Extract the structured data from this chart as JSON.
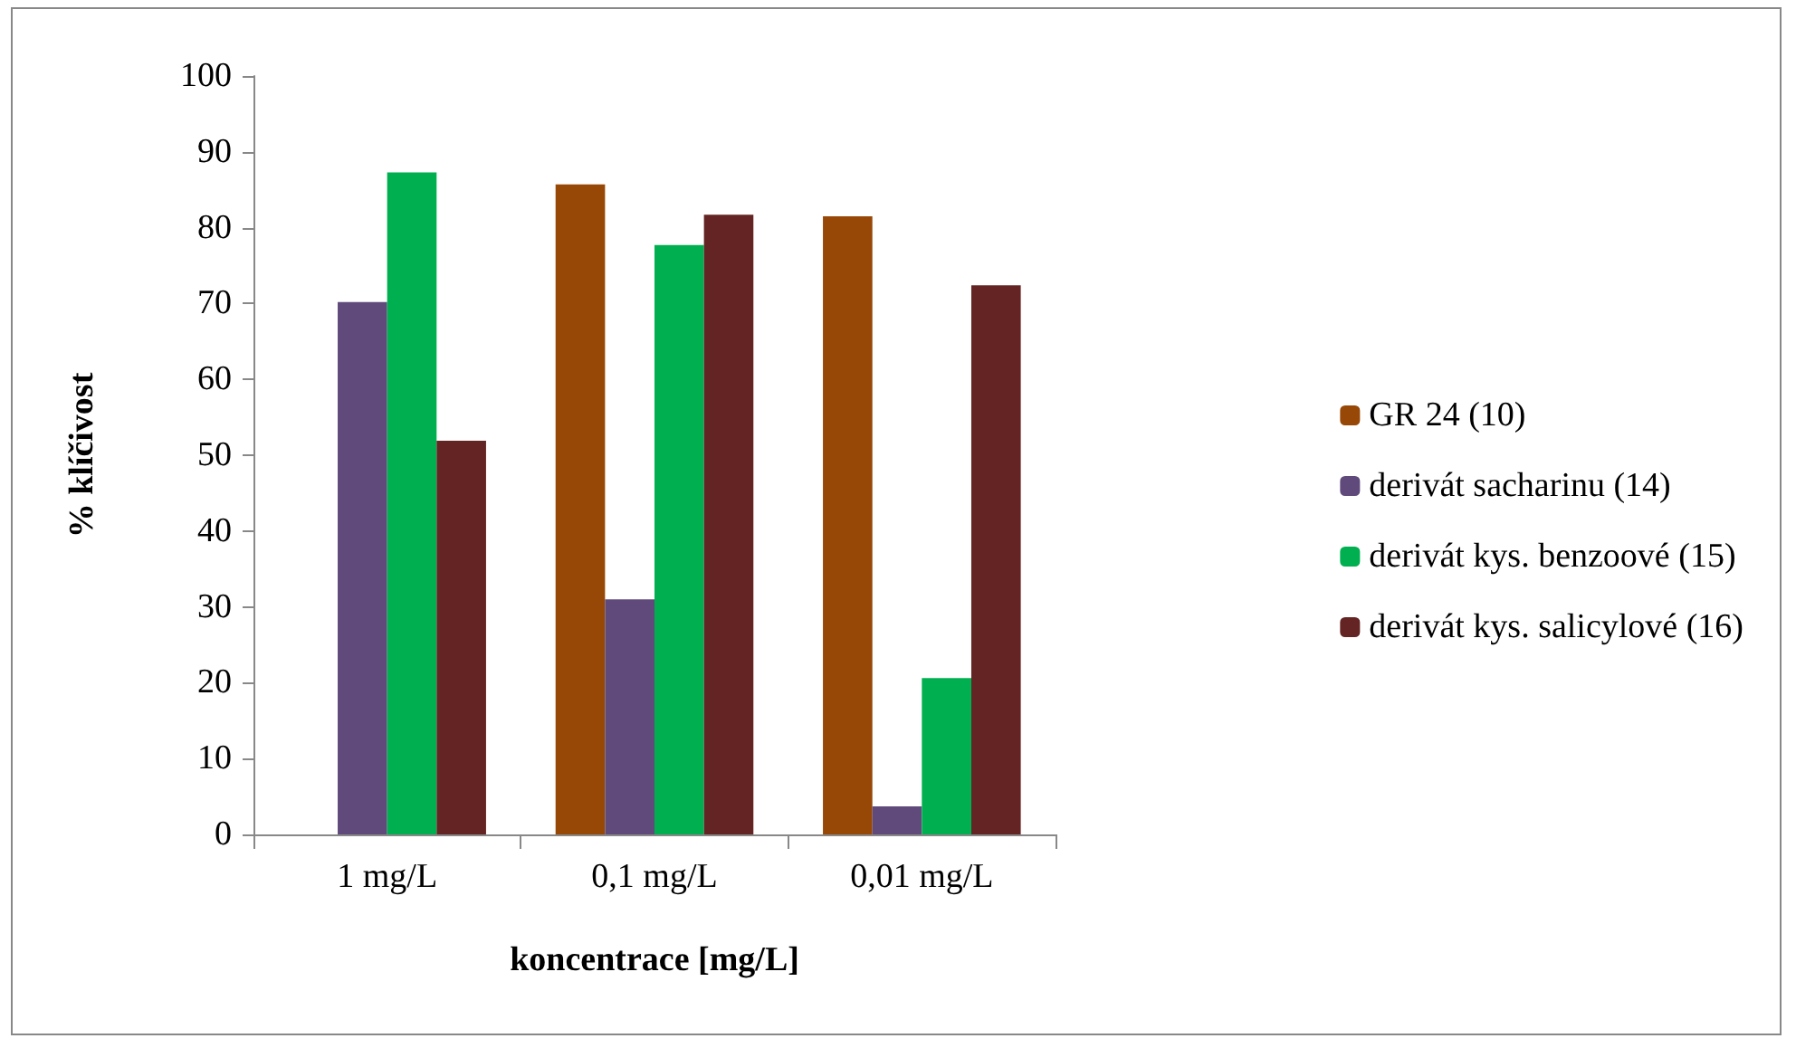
{
  "chart_data": {
    "type": "bar",
    "xlabel": "koncentrace [mg/L]",
    "ylabel": "% klíčivost",
    "categories": [
      "1 mg/L",
      "0,1 mg/L",
      "0,01 mg/L"
    ],
    "series": [
      {
        "name": "GR 24 (10)",
        "color": "#974706",
        "values": [
          null,
          85.7,
          81.5
        ]
      },
      {
        "name": "derivát sacharinu (14)",
        "color": "#604a7b",
        "values": [
          70.2,
          31.0,
          3.7
        ]
      },
      {
        "name": "derivát kys. benzoové (15)",
        "color": "#00b050",
        "values": [
          87.3,
          77.7,
          20.6
        ]
      },
      {
        "name": "derivát kys. salicylové (16)",
        "color": "#632423",
        "values": [
          51.9,
          81.7,
          72.4
        ]
      }
    ],
    "ylim": [
      0,
      100
    ],
    "yticks": [
      0,
      10,
      20,
      30,
      40,
      50,
      60,
      70,
      80,
      90,
      100
    ],
    "grid": false,
    "legend": "right"
  }
}
